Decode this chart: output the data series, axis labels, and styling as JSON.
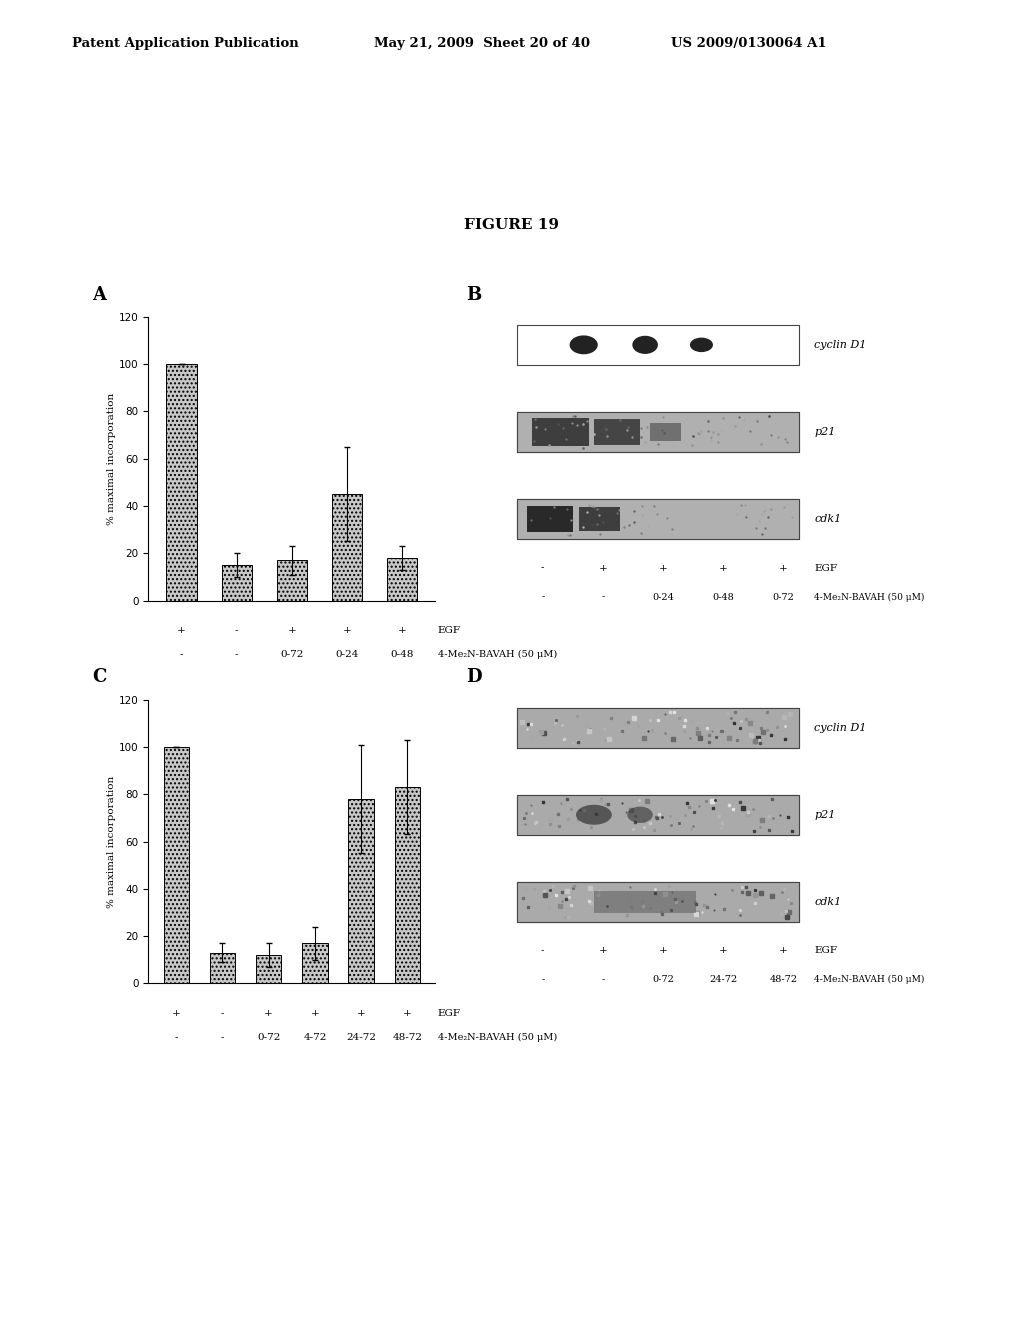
{
  "header_left": "Patent Application Publication",
  "header_mid": "May 21, 2009  Sheet 20 of 40",
  "header_right": "US 2009/0130064 A1",
  "figure_title": "FIGURE 19",
  "panel_A": {
    "label": "A",
    "values": [
      100,
      15,
      17,
      45,
      18
    ],
    "errors": [
      0,
      5,
      6,
      20,
      5
    ],
    "ylabel": "% maximal incorporation",
    "ylim": [
      0,
      120
    ],
    "yticks": [
      0,
      20,
      40,
      60,
      80,
      100,
      120
    ],
    "egf_row": [
      "+",
      "-",
      "+",
      "+",
      "+"
    ],
    "bavah_row": [
      "-",
      "-",
      "0-72",
      "0-24",
      "0-48"
    ],
    "egf_label": "EGF",
    "bavah_label": "4-Me₂N-BAVAH (50 μM)"
  },
  "panel_B": {
    "label": "B",
    "band_labels": [
      "cyclin D1",
      "p21",
      "cdk1"
    ],
    "egf_row": [
      "-",
      "+",
      "+",
      "+",
      "+"
    ],
    "bavah_row": [
      "-",
      "-",
      "0-24",
      "0-48",
      "0-72"
    ],
    "egf_label": "EGF",
    "bavah_label": "4-Me₂N-BAVAH (50 μM)"
  },
  "panel_C": {
    "label": "C",
    "values": [
      100,
      13,
      12,
      17,
      78,
      83
    ],
    "errors": [
      0,
      4,
      5,
      7,
      23,
      20
    ],
    "ylabel": "% maximal incorporation",
    "ylim": [
      0,
      120
    ],
    "yticks": [
      0,
      20,
      40,
      60,
      80,
      100,
      120
    ],
    "egf_row": [
      "+",
      "-",
      "+",
      "+",
      "+",
      "+"
    ],
    "bavah_row": [
      "-",
      "-",
      "0-72",
      "4-72",
      "24-72",
      "48-72"
    ],
    "egf_label": "EGF",
    "bavah_label": "4-Me₂N-BAVAH (50 μM)"
  },
  "panel_D": {
    "label": "D",
    "band_labels": [
      "cyclin D1",
      "p21",
      "cdk1"
    ],
    "egf_row": [
      "-",
      "+",
      "+",
      "+",
      "+"
    ],
    "bavah_row": [
      "-",
      "-",
      "0-72",
      "24-72",
      "48-72"
    ],
    "egf_label": "EGF",
    "bavah_label": "4-Me₂N-BAVAH (50 μM)"
  },
  "background_color": "#ffffff",
  "bar_facecolor": "#c8c8c8",
  "bar_hatch": "....",
  "text_color": "#000000"
}
